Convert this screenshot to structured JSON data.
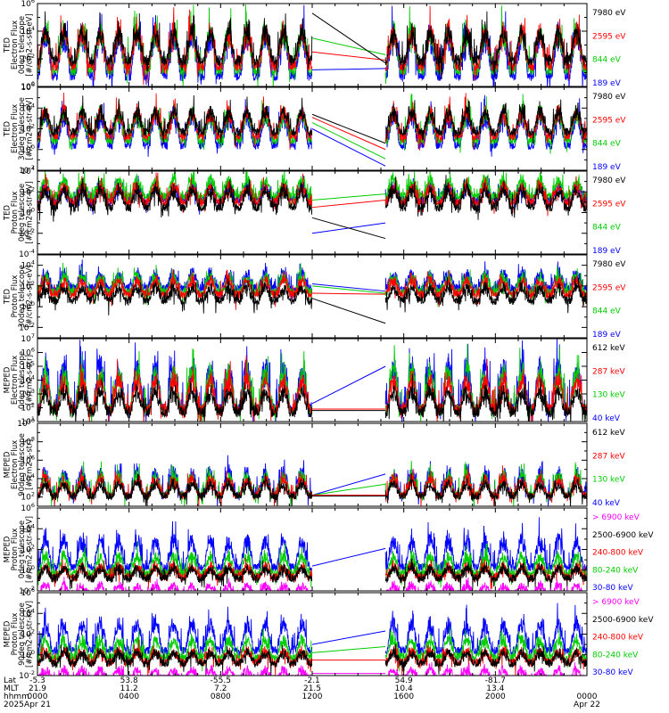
{
  "chart_data": [
    {
      "type": "line",
      "ylabel": [
        "TED",
        "Electron Flux",
        "0deg telescope",
        "[#/cm2-s-str-eV]"
      ],
      "ytick_exponents": [
        0,
        2,
        4,
        6
      ],
      "ylim_log10": [
        0,
        6
      ],
      "baseline": [
        1.9,
        1.5,
        1.2,
        0.8
      ],
      "amplitude": [
        2.5,
        3.0,
        3.4,
        3.6
      ],
      "spike_prob": [
        0.06,
        0.05,
        0.04,
        0.05
      ],
      "gap_lines": [
        [
          5.3,
          1.7
        ],
        [
          2.5,
          1.9
        ],
        [
          3.5,
          2.3
        ],
        [
          1.2,
          1.3
        ]
      ],
      "legend": [
        {
          "label": "7980 eV",
          "color": "#000000"
        },
        {
          "label": "2595 eV",
          "color": "#ff0000"
        },
        {
          "label": "844 eV",
          "color": "#00cc00"
        },
        {
          "label": "189 eV",
          "color": "#0000ff"
        }
      ]
    },
    {
      "type": "line",
      "ylabel": [
        "TED",
        "Electron Flux",
        "30deg telescope",
        "[#/cm2-s-str-eV]"
      ],
      "ytick_exponents": [
        -2,
        0,
        2,
        4,
        6
      ],
      "ylim_log10": [
        -2,
        6
      ],
      "baseline": [
        1.7,
        1.3,
        0.9,
        0.4
      ],
      "amplitude": [
        2.4,
        2.8,
        3.2,
        3.5
      ],
      "spike_prob": [
        0.06,
        0.05,
        0.04,
        0.05
      ],
      "gap_lines": [
        [
          3.4,
          0.6
        ],
        [
          3.1,
          0.0
        ],
        [
          2.6,
          -0.9
        ],
        [
          2.0,
          -1.6
        ]
      ],
      "legend": [
        {
          "label": "7980 eV",
          "color": "#000000"
        },
        {
          "label": "2595 eV",
          "color": "#ff0000"
        },
        {
          "label": "844 eV",
          "color": "#00cc00"
        },
        {
          "label": "189 eV",
          "color": "#0000ff"
        }
      ]
    },
    {
      "type": "line",
      "ylabel": [
        "TED",
        "Proton Flux",
        "0deg telescope",
        "[#/cm2-s-str-eV]"
      ],
      "ytick_exponents": [
        -4,
        -2,
        0,
        2,
        4
      ],
      "ylim_log10": [
        -4,
        4
      ],
      "baseline": [
        0.5,
        1.0,
        1.6,
        1.2
      ],
      "amplitude": [
        2.0,
        1.8,
        1.9,
        1.6
      ],
      "spike_prob": [
        0.1,
        0.08,
        0.08,
        0.08
      ],
      "gap_lines": [
        [
          -0.5,
          -2.5
        ],
        [
          0.5,
          1.2
        ],
        [
          1.2,
          1.8
        ],
        [
          -2.0,
          -1.0
        ]
      ],
      "legend": [
        {
          "label": "7980 eV",
          "color": "#000000"
        },
        {
          "label": "2595 eV",
          "color": "#ff0000"
        },
        {
          "label": "844 eV",
          "color": "#00cc00"
        },
        {
          "label": "189 eV",
          "color": "#0000ff"
        }
      ]
    },
    {
      "type": "line",
      "ylabel": [
        "TED",
        "Proton Flux",
        "30deg telescope",
        "[#/cm2-s-str-eV]"
      ],
      "ytick_exponents": [
        -2,
        0,
        2,
        4
      ],
      "ylim_log10": [
        -3,
        5
      ],
      "baseline": [
        0.6,
        1.2,
        1.4,
        1.8
      ],
      "amplitude": [
        1.5,
        1.6,
        1.8,
        1.7
      ],
      "spike_prob": [
        0.08,
        0.07,
        0.08,
        0.08
      ],
      "gap_lines": [
        [
          0.8,
          -1.6
        ],
        [
          1.3,
          1.2
        ],
        [
          2.0,
          1.3
        ],
        [
          2.2,
          1.5
        ]
      ],
      "legend": [
        {
          "label": "7980 eV",
          "color": "#000000"
        },
        {
          "label": "2595 eV",
          "color": "#ff0000"
        },
        {
          "label": "844 eV",
          "color": "#00cc00"
        },
        {
          "label": "189 eV",
          "color": "#0000ff"
        }
      ]
    },
    {
      "type": "line",
      "ylabel": [
        "MEPED",
        "Electron Flux",
        "0deg telescope",
        "[#/cm2-s-str]"
      ],
      "ytick_exponents": [
        1,
        2,
        3,
        4,
        5,
        6,
        7
      ],
      "ylim_log10": [
        1,
        7
      ],
      "baseline": [
        1.7,
        1.9,
        1.9,
        1.9
      ],
      "amplitude": [
        1.8,
        2.6,
        3.2,
        3.8
      ],
      "spike_prob": [
        0.05,
        0.05,
        0.05,
        0.06
      ],
      "gap_lines": [
        [
          1.8,
          1.8
        ],
        [
          1.9,
          1.9
        ],
        [
          1.9,
          1.9
        ],
        [
          2.3,
          5.0
        ]
      ],
      "legend": [
        {
          "label": "612 keV",
          "color": "#000000"
        },
        {
          "label": "287 keV",
          "color": "#ff0000"
        },
        {
          "label": "130 keV",
          "color": "#00cc00"
        },
        {
          "label": "40 keV",
          "color": "#0000ff"
        }
      ]
    },
    {
      "type": "line",
      "ylabel": [
        "MEPED",
        "Electron Flux",
        "90deg telescope",
        "[#/cm2-s-str]"
      ],
      "ytick_exponents": [
        2,
        4,
        6,
        8,
        10
      ],
      "ylim_log10": [
        1,
        10
      ],
      "baseline": [
        2.1,
        2.2,
        2.2,
        2.2
      ],
      "amplitude": [
        1.6,
        2.2,
        2.6,
        3.0
      ],
      "spike_prob": [
        0.06,
        0.06,
        0.06,
        0.06
      ],
      "gap_lines": [
        [
          2.1,
          2.1
        ],
        [
          2.2,
          2.2
        ],
        [
          2.2,
          3.4
        ],
        [
          2.2,
          4.5
        ]
      ],
      "legend": [
        {
          "label": "612 keV",
          "color": "#000000"
        },
        {
          "label": "287 keV",
          "color": "#ff0000"
        },
        {
          "label": "130 keV",
          "color": "#00cc00"
        },
        {
          "label": "40 keV",
          "color": "#0000ff"
        }
      ]
    },
    {
      "type": "line",
      "ylabel": [
        "MEPED",
        "Proton Flux",
        "0deg telescope",
        "[#/cm2-s-str-keV]"
      ],
      "ytick_exponents": [
        -2,
        0,
        2,
        4,
        6
      ],
      "ylim_log10": [
        -2,
        6
      ],
      "baseline": [
        -2.3,
        -0.8,
        -0.7,
        -0.3,
        0.3
      ],
      "amplitude": [
        1.0,
        1.2,
        1.3,
        2.0,
        3.2
      ],
      "spike_prob": [
        0.03,
        0.04,
        0.05,
        0.05,
        0.06
      ],
      "gap_lines": [
        null,
        null,
        null,
        null,
        [
          0.4,
          2.1
        ]
      ],
      "legend": [
        {
          "label": "> 6900 keV",
          "color": "#ff00ff"
        },
        {
          "label": "2500-6900 keV",
          "color": "#000000"
        },
        {
          "label": "240-800 keV",
          "color": "#ff0000"
        },
        {
          "label": "80-240 keV",
          "color": "#00cc00"
        },
        {
          "label": "30-80 keV",
          "color": "#0000ff"
        }
      ]
    },
    {
      "type": "line",
      "ylabel": [
        "MEPED",
        "Proton Flux",
        "90deg telescope",
        "[#/cm2-s-str-keV]"
      ],
      "ytick_exponents": [
        -2,
        0,
        2,
        4,
        6
      ],
      "ylim_log10": [
        -2,
        6
      ],
      "baseline": [
        -2.3,
        -0.8,
        -0.7,
        -0.2,
        0.4
      ],
      "amplitude": [
        1.0,
        1.2,
        1.3,
        2.0,
        3.2
      ],
      "spike_prob": [
        0.03,
        0.04,
        0.05,
        0.05,
        0.06
      ],
      "gap_lines": [
        [
          -1.8,
          -1.8
        ],
        null,
        [
          -0.5,
          -0.5
        ],
        [
          0.2,
          0.8
        ],
        [
          1.0,
          2.3
        ]
      ],
      "legend": [
        {
          "label": "> 6900 keV",
          "color": "#ff00ff"
        },
        {
          "label": "2500-6900 keV",
          "color": "#000000"
        },
        {
          "label": "240-800 keV",
          "color": "#ff0000"
        },
        {
          "label": "80-240 keV",
          "color": "#00cc00"
        },
        {
          "label": "30-80 keV",
          "color": "#0000ff"
        }
      ]
    }
  ],
  "x_axis": {
    "row_labels": [
      "Lat",
      "MLT",
      "hhmm",
      "2025"
    ],
    "data_gap_hours": [
      12.0,
      15.2
    ],
    "ticks": [
      {
        "hours": 0,
        "lat": "-5.3",
        "mlt": "21.9",
        "hhmm": "0000",
        "date": "Apr 21"
      },
      {
        "hours": 4,
        "lat": "53.8",
        "mlt": "11.2",
        "hhmm": "0400",
        "date": ""
      },
      {
        "hours": 8,
        "lat": "-55.5",
        "mlt": "7.2",
        "hhmm": "0800",
        "date": ""
      },
      {
        "hours": 12,
        "lat": "-2.1",
        "mlt": "21.5",
        "hhmm": "1200",
        "date": ""
      },
      {
        "hours": 16,
        "lat": "54.9",
        "mlt": "10.4",
        "hhmm": "1600",
        "date": ""
      },
      {
        "hours": 20,
        "lat": "-81.7",
        "mlt": "13.4",
        "hhmm": "2000",
        "date": ""
      },
      {
        "hours": 24,
        "lat": "",
        "mlt": "",
        "hhmm": "0000",
        "date": "Apr 22"
      }
    ]
  }
}
